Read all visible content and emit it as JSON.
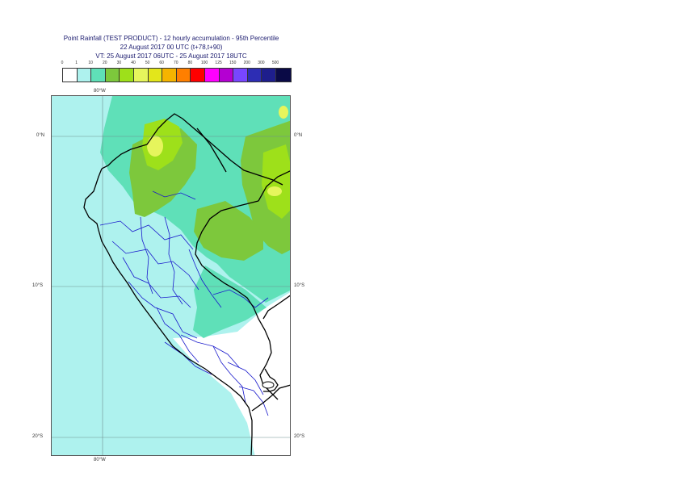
{
  "title": {
    "line1": "Point Rainfall (TEST PRODUCT) - 12 hourly accumulation - 95th Percentile",
    "line2": "22 August 2017 00 UTC (t+78,t+90)",
    "line3": "VT: 25 August 2017 06UTC - 25 August 2017 18UTC"
  },
  "legend": {
    "thresholds": [
      "0",
      "1",
      "10",
      "20",
      "30",
      "40",
      "50",
      "60",
      "70",
      "80",
      "100",
      "125",
      "150",
      "200",
      "300",
      "500"
    ],
    "colors": [
      "#ffffff",
      "#aef2ee",
      "#5fe0b8",
      "#7dc83c",
      "#9ee01a",
      "#e6f55c",
      "#e3e61b",
      "#f5b400",
      "#ff7f00",
      "#ff0000",
      "#ff00ff",
      "#b400d2",
      "#7846ff",
      "#2d2db4",
      "#1e1e8c",
      "#0a0a46"
    ]
  },
  "axes": {
    "lon_top": "80°W",
    "lon_bottom": "80°W",
    "lat_labels_left": [
      "0°N",
      "10°S",
      "20°S"
    ],
    "lat_labels_right": [
      "0°N",
      "10°S",
      "20°S"
    ]
  },
  "map": {
    "region": "Peru",
    "colors": {
      "ocean_low": "#aef2ee",
      "moderate": "#5fe0b8",
      "heavy": "#7dc83c",
      "very_heavy": "#9ee01a",
      "extreme": "#e6f55c",
      "none": "#ffffff",
      "coast": "#000000",
      "admin": "#1a1acc",
      "grid": "#6f8f8f"
    }
  }
}
